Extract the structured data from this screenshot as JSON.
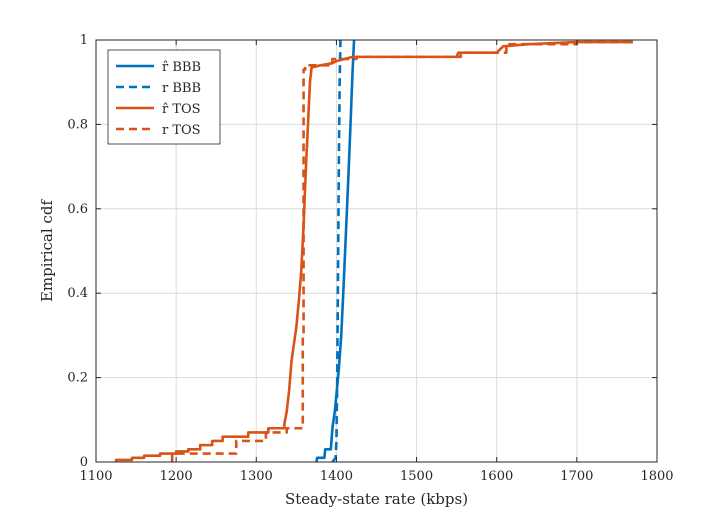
{
  "chart_data": {
    "type": "line",
    "title": "",
    "xlabel": "Steady-state rate (kbps)",
    "ylabel": "Empirical cdf",
    "xlim": [
      1100,
      1800
    ],
    "ylim": [
      0,
      1
    ],
    "xticks": [
      1100,
      1200,
      1300,
      1400,
      1500,
      1600,
      1700,
      1800
    ],
    "yticks": [
      0,
      0.2,
      0.4,
      0.6,
      0.8,
      1
    ],
    "ytick_labels": [
      "0",
      "0.2",
      "0.4",
      "0.6",
      "0.8",
      "1"
    ],
    "grid": true,
    "legend_position": "top-left",
    "series": [
      {
        "name": "r̂ BBB",
        "color": "#0072BD",
        "style": "solid",
        "points": [
          [
            1375,
            0
          ],
          [
            1376,
            0.01
          ],
          [
            1385,
            0.01
          ],
          [
            1386,
            0.03
          ],
          [
            1393,
            0.03
          ],
          [
            1395,
            0.08
          ],
          [
            1398,
            0.12
          ],
          [
            1400,
            0.16
          ],
          [
            1403,
            0.22
          ],
          [
            1406,
            0.3
          ],
          [
            1409,
            0.42
          ],
          [
            1412,
            0.55
          ],
          [
            1415,
            0.68
          ],
          [
            1418,
            0.82
          ],
          [
            1420,
            0.92
          ],
          [
            1422,
            1.0
          ]
        ]
      },
      {
        "name": "r BBB",
        "color": "#0072BD",
        "style": "dashed",
        "points": [
          [
            1395,
            0
          ],
          [
            1397,
            0.005
          ],
          [
            1399,
            0.01
          ],
          [
            1400,
            0.05
          ],
          [
            1401,
            0.2
          ],
          [
            1402,
            0.45
          ],
          [
            1403,
            0.7
          ],
          [
            1404,
            0.9
          ],
          [
            1405,
            1.0
          ]
        ]
      },
      {
        "name": "r̂ TOS",
        "color": "#D95319",
        "style": "solid",
        "points": [
          [
            1125,
            0
          ],
          [
            1125,
            0.005
          ],
          [
            1145,
            0.005
          ],
          [
            1145,
            0.01
          ],
          [
            1160,
            0.01
          ],
          [
            1160,
            0.015
          ],
          [
            1180,
            0.015
          ],
          [
            1180,
            0.02
          ],
          [
            1200,
            0.02
          ],
          [
            1200,
            0.025
          ],
          [
            1215,
            0.025
          ],
          [
            1215,
            0.03
          ],
          [
            1230,
            0.03
          ],
          [
            1230,
            0.04
          ],
          [
            1245,
            0.04
          ],
          [
            1245,
            0.05
          ],
          [
            1258,
            0.05
          ],
          [
            1258,
            0.06
          ],
          [
            1290,
            0.06
          ],
          [
            1290,
            0.07
          ],
          [
            1315,
            0.07
          ],
          [
            1315,
            0.08
          ],
          [
            1335,
            0.08
          ],
          [
            1335,
            0.09
          ],
          [
            1338,
            0.12
          ],
          [
            1341,
            0.17
          ],
          [
            1344,
            0.24
          ],
          [
            1347,
            0.28
          ],
          [
            1350,
            0.32
          ],
          [
            1353,
            0.38
          ],
          [
            1356,
            0.45
          ],
          [
            1359,
            0.56
          ],
          [
            1362,
            0.7
          ],
          [
            1365,
            0.82
          ],
          [
            1367,
            0.9
          ],
          [
            1369,
            0.935
          ],
          [
            1380,
            0.94
          ],
          [
            1395,
            0.945
          ],
          [
            1400,
            0.95
          ],
          [
            1410,
            0.955
          ],
          [
            1420,
            0.96
          ],
          [
            1550,
            0.96
          ],
          [
            1552,
            0.97
          ],
          [
            1600,
            0.97
          ],
          [
            1608,
            0.985
          ],
          [
            1640,
            0.99
          ],
          [
            1700,
            0.995
          ],
          [
            1770,
            0.995
          ]
        ]
      },
      {
        "name": "r TOS",
        "color": "#D95319",
        "style": "dashed",
        "points": [
          [
            1195,
            0
          ],
          [
            1195,
            0.02
          ],
          [
            1275,
            0.02
          ],
          [
            1275,
            0.05
          ],
          [
            1312,
            0.05
          ],
          [
            1312,
            0.07
          ],
          [
            1338,
            0.07
          ],
          [
            1338,
            0.08
          ],
          [
            1358,
            0.08
          ],
          [
            1358,
            0.3
          ],
          [
            1359,
            0.3
          ],
          [
            1359,
            0.93
          ],
          [
            1361,
            0.93
          ],
          [
            1361,
            0.94
          ],
          [
            1395,
            0.94
          ],
          [
            1395,
            0.955
          ],
          [
            1425,
            0.955
          ],
          [
            1425,
            0.96
          ],
          [
            1555,
            0.96
          ],
          [
            1555,
            0.97
          ],
          [
            1612,
            0.97
          ],
          [
            1612,
            0.99
          ],
          [
            1700,
            0.99
          ],
          [
            1700,
            0.995
          ],
          [
            1770,
            0.995
          ]
        ]
      }
    ]
  }
}
